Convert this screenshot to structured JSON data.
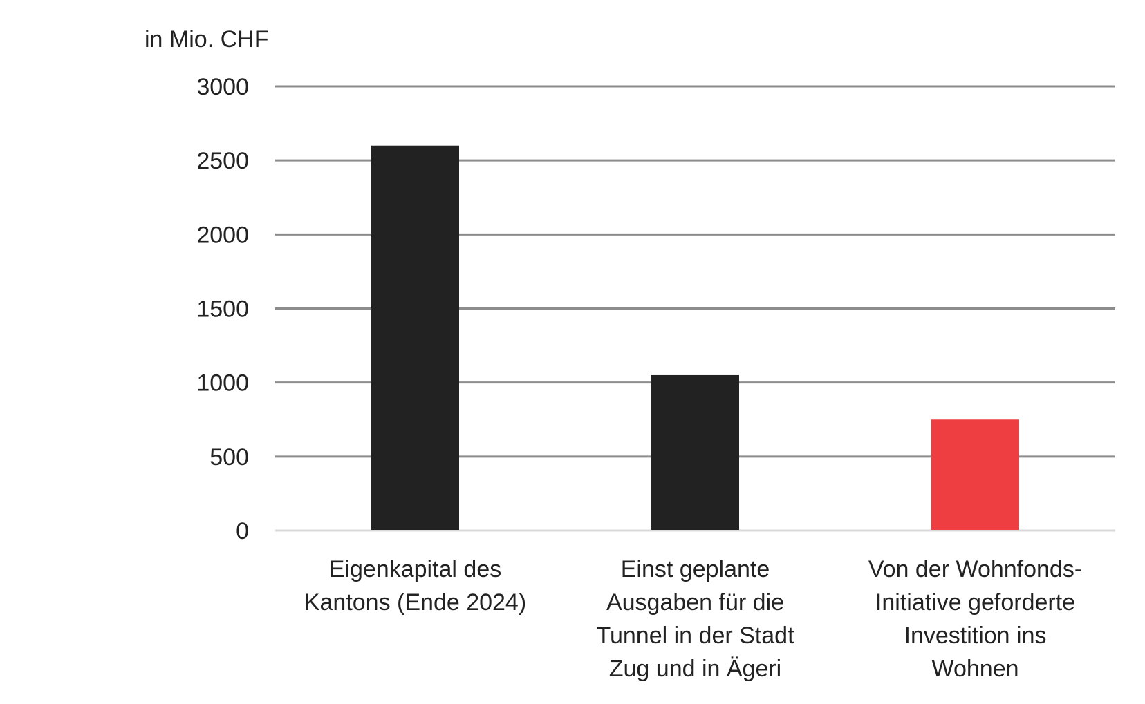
{
  "chart_data": {
    "type": "bar",
    "title": "",
    "unit_label": "in Mio. CHF",
    "xlabel": "",
    "ylabel": "",
    "ylim": [
      0,
      3000
    ],
    "yticks": [
      0,
      500,
      1000,
      1500,
      2000,
      2500,
      3000
    ],
    "grid": true,
    "categories": [
      [
        "Eigenkapital des",
        "Kantons (Ende 2024)"
      ],
      [
        "Einst geplante",
        "Ausgaben für die",
        "Tunnel in der Stadt",
        "Zug und in Ägeri"
      ],
      [
        "Von der Wohnfonds-",
        "Initiative geforderte",
        "Investition ins",
        "Wohnen"
      ]
    ],
    "values": [
      2600,
      1050,
      750
    ],
    "colors": [
      "#222222",
      "#222222",
      "#ee3e42"
    ],
    "gridline_color": "#8c8c8c",
    "baseline_color": "#d9d9d9"
  }
}
